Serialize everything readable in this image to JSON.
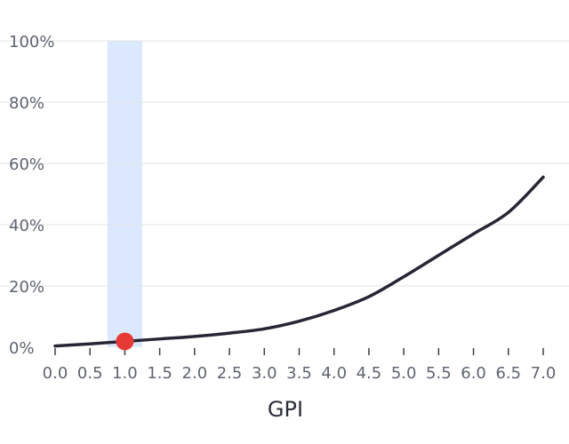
{
  "chart_data": {
    "type": "line",
    "xlabel": "GPI",
    "ylabel": "",
    "xlim": [
      0,
      7.0
    ],
    "ylim": [
      0,
      100
    ],
    "x_ticks": [
      "0.0",
      "0.5",
      "1.0",
      "1.5",
      "2.0",
      "2.5",
      "3.0",
      "3.5",
      "4.0",
      "4.5",
      "5.0",
      "5.5",
      "6.0",
      "6.5",
      "7.0"
    ],
    "y_ticks": [
      "0%",
      "20%",
      "40%",
      "60%",
      "80%",
      "100%"
    ],
    "grid": true,
    "series": [
      {
        "color": "#262635",
        "x": [
          0.0,
          0.5,
          1.0,
          1.5,
          2.0,
          2.5,
          3.0,
          3.5,
          4.0,
          4.5,
          5.0,
          5.5,
          6.0,
          6.5,
          7.0
        ],
        "y": [
          0.4,
          1.1,
          1.9,
          2.7,
          3.5,
          4.6,
          6.0,
          8.5,
          12.0,
          16.5,
          23.0,
          30.0,
          37.0,
          44.0,
          55.5
        ]
      }
    ],
    "highlight": {
      "band_x": [
        0.75,
        1.25
      ],
      "band_color": "#dce8fd",
      "point": {
        "x": 1.0,
        "y": 1.9,
        "color": "#e53a35"
      }
    }
  }
}
